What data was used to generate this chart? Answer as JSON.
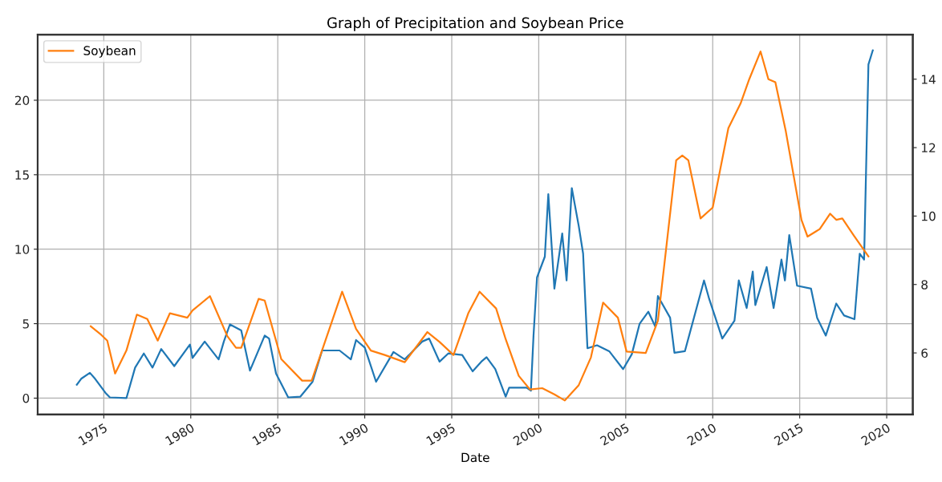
{
  "chart_data": {
    "type": "line",
    "title": "Graph of Precipitation and Soybean Price",
    "xlabel": "Date",
    "xlim": [
      1971.2,
      2021.5
    ],
    "xticks": [
      1975,
      1980,
      1985,
      1990,
      1995,
      2000,
      2005,
      2010,
      2015,
      2020
    ],
    "ylim": [
      -1.1,
      24.4
    ],
    "yticks": [
      0,
      5,
      10,
      15,
      20
    ],
    "y2lim": [
      4.2,
      15.3
    ],
    "y2ticks": [
      6,
      8,
      10,
      12,
      14
    ],
    "grid": true,
    "legend": "top left",
    "series": [
      {
        "color": "#1f77b4",
        "x": [
          1973.45,
          1973.7,
          1974.2,
          1974.5,
          1975.1,
          1975.35,
          1976.3,
          1976.8,
          1977.3,
          1977.8,
          1978.3,
          1979.05,
          1979.95,
          1980.1,
          1980.8,
          1981.6,
          1981.9,
          1982.25,
          1982.9,
          1983.4,
          1984.25,
          1984.5,
          1984.9,
          1985.6,
          1986.3,
          1987.0,
          1987.55,
          1988.55,
          1989.2,
          1989.5,
          1990.0,
          1990.65,
          1991.65,
          1992.3,
          1993.3,
          1993.7,
          1994.3,
          1994.8,
          1995.6,
          1996.2,
          1996.7,
          1997.0,
          1997.5,
          1998.1,
          1998.3,
          1999.3,
          1999.55,
          1999.7,
          1999.9,
          2000.35,
          2000.55,
          2000.9,
          2001.35,
          2001.6,
          2001.9,
          2002.3,
          2002.55,
          2002.8,
          2003.35,
          2004.05,
          2004.85,
          2005.35,
          2005.8,
          2006.3,
          2006.7,
          2006.85,
          2007.55,
          2007.8,
          2008.4,
          2009.5,
          2009.8,
          2010.55,
          2011.25,
          2011.5,
          2011.95,
          2012.3,
          2012.45,
          2013.1,
          2013.5,
          2013.95,
          2014.15,
          2014.4,
          2014.85,
          2015.65,
          2016.0,
          2016.5,
          2017.1,
          2017.55,
          2018.15,
          2018.45,
          2018.7,
          2018.95,
          2019.2
        ],
        "values": [
          0.9,
          1.3,
          1.7,
          1.3,
          0.35,
          0.05,
          0,
          2.05,
          3.0,
          2.05,
          3.3,
          2.15,
          3.6,
          2.7,
          3.8,
          2.6,
          3.8,
          4.95,
          4.55,
          1.85,
          4.2,
          4.0,
          1.65,
          0.05,
          0.1,
          1.1,
          3.2,
          3.2,
          2.6,
          3.9,
          3.4,
          1.1,
          3.1,
          2.6,
          3.8,
          4.0,
          2.45,
          3.0,
          2.9,
          1.8,
          2.45,
          2.75,
          1.95,
          0.1,
          0.7,
          0.7,
          0.5,
          4.2,
          8.1,
          9.5,
          13.7,
          7.35,
          11.05,
          7.9,
          14.1,
          11.55,
          9.7,
          3.35,
          3.55,
          3.15,
          1.95,
          2.95,
          5.0,
          5.8,
          4.8,
          6.85,
          5.4,
          3.05,
          3.15,
          7.9,
          6.65,
          4.0,
          5.2,
          7.9,
          6.05,
          8.5,
          6.25,
          8.8,
          6.05,
          9.3,
          7.9,
          10.95,
          7.55,
          7.35,
          5.4,
          4.2,
          6.35,
          5.55,
          5.3,
          9.7,
          9.3,
          22.4,
          23.35
        ]
      },
      {
        "name": "Soybean",
        "color": "#ff7f0e",
        "axis": "y2",
        "x": [
          1974.25,
          1974.85,
          1975.2,
          1975.65,
          1976.3,
          1976.9,
          1977.5,
          1978.1,
          1978.8,
          1979.8,
          1980.1,
          1981.1,
          1982.1,
          1982.6,
          1982.9,
          1983.9,
          1984.25,
          1985.2,
          1986.4,
          1986.95,
          1988.7,
          1989.5,
          1990.35,
          1991.15,
          1992.3,
          1993.6,
          1994.3,
          1995.1,
          1995.95,
          1996.6,
          1997.55,
          1998.1,
          1998.85,
          1999.5,
          2000.2,
          2000.9,
          2001.5,
          2002.3,
          2003.0,
          2003.7,
          2004.55,
          2005.05,
          2006.15,
          2006.85,
          2007.35,
          2007.9,
          2008.25,
          2008.6,
          2009.3,
          2010.0,
          2010.9,
          2011.6,
          2012.1,
          2012.75,
          2013.2,
          2013.6,
          2014.2,
          2015.1,
          2015.45,
          2016.15,
          2016.75,
          2017.1,
          2017.45,
          2018.1,
          2018.95
        ],
        "values": [
          6.78,
          6.53,
          6.36,
          5.4,
          6.07,
          7.12,
          6.99,
          6.36,
          7.16,
          7.03,
          7.24,
          7.66,
          6.49,
          6.15,
          6.15,
          7.58,
          7.53,
          5.82,
          5.19,
          5.19,
          7.79,
          6.7,
          6.07,
          5.94,
          5.73,
          6.61,
          6.32,
          5.94,
          7.16,
          7.79,
          7.3,
          6.4,
          5.33,
          4.93,
          4.97,
          4.79,
          4.61,
          5.06,
          5.87,
          7.47,
          7.03,
          6.04,
          6.0,
          6.94,
          9.17,
          11.63,
          11.77,
          11.63,
          9.93,
          10.25,
          12.57,
          13.29,
          14.0,
          14.81,
          14.0,
          13.91,
          12.48,
          9.89,
          9.4,
          9.62,
          10.07,
          9.89,
          9.93,
          9.44,
          8.82
        ]
      }
    ]
  }
}
